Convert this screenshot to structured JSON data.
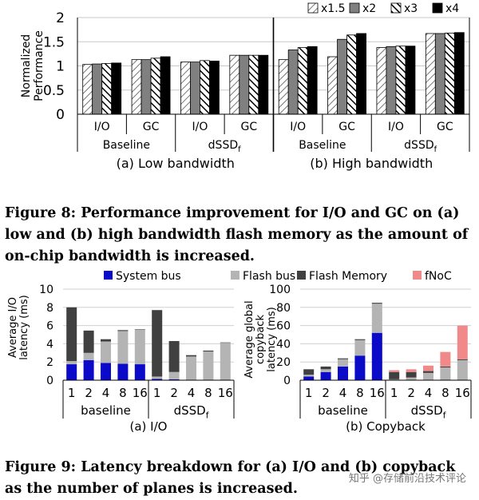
{
  "fig8": {
    "chart_data": {
      "type": "bar",
      "ylabel": "Normalized Performance",
      "ylim": [
        0,
        2
      ],
      "yticks": [
        0,
        0.5,
        1,
        1.5,
        2
      ],
      "yticks_labels": [
        "0",
        "0.5",
        "1",
        "1.5",
        "2"
      ],
      "legend": [
        "x1.5",
        "x2",
        "x3",
        "x4"
      ],
      "legend_position": "top-right",
      "groups": [
        {
          "subtitle": "(a) Low bandwidth",
          "systems": [
            {
              "name": "Baseline",
              "name_sub": "",
              "workloads": [
                {
                  "label": "I/O",
                  "values": [
                    1.03,
                    1.04,
                    1.05,
                    1.06
                  ]
                },
                {
                  "label": "GC",
                  "values": [
                    1.13,
                    1.13,
                    1.16,
                    1.19
                  ]
                }
              ]
            },
            {
              "name": "dSSD",
              "name_sub": "f",
              "workloads": [
                {
                  "label": "I/O",
                  "values": [
                    1.08,
                    1.08,
                    1.11,
                    1.1
                  ]
                },
                {
                  "label": "GC",
                  "values": [
                    1.22,
                    1.22,
                    1.22,
                    1.22
                  ]
                }
              ]
            }
          ]
        },
        {
          "subtitle": "(b) High bandwidth",
          "systems": [
            {
              "name": "Baseline",
              "name_sub": "",
              "workloads": [
                {
                  "label": "I/O",
                  "values": [
                    1.13,
                    1.33,
                    1.38,
                    1.4
                  ]
                },
                {
                  "label": "GC",
                  "values": [
                    1.19,
                    1.55,
                    1.64,
                    1.67
                  ]
                }
              ]
            },
            {
              "name": "dSSD",
              "name_sub": "f",
              "workloads": [
                {
                  "label": "I/O",
                  "values": [
                    1.38,
                    1.4,
                    1.41,
                    1.41
                  ]
                },
                {
                  "label": "GC",
                  "values": [
                    1.67,
                    1.67,
                    1.68,
                    1.69
                  ]
                }
              ]
            }
          ]
        }
      ]
    }
  },
  "caption8": "Figure 8: Performance improvement for I/O and GC on (a) low and (b) high bandwidth flash memory as the amount of on-chip bandwidth is increased.",
  "fig9": {
    "legend": [
      "System bus",
      "Flash bus",
      "Flash Memory",
      "fNoC"
    ],
    "colors": {
      "System bus": "#0a0ac8",
      "Flash bus": "#b4b4b4",
      "Flash Memory": "#404040",
      "fNoC": "#f08a8a"
    },
    "charts": [
      {
        "type": "bar",
        "stacked": true,
        "subtitle": "(a) I/O",
        "ylabel": "Average I/O latency (ms)",
        "ylim": [
          0,
          10
        ],
        "yticks": [
          0,
          2,
          4,
          6,
          8,
          10
        ],
        "yticks_labels": [
          "0",
          "2",
          "4",
          "6",
          "8",
          "10"
        ],
        "groups": [
          {
            "name": "baseline",
            "name_sub": "",
            "categories": [
              "1",
              "2",
              "4",
              "8",
              "16"
            ],
            "stacks": [
              [
                1.75,
                0.35,
                5.9,
                0
              ],
              [
                2.2,
                0.8,
                2.45,
                0
              ],
              [
                1.9,
                2.35,
                0.25,
                0
              ],
              [
                1.8,
                3.6,
                0.1,
                0
              ],
              [
                1.75,
                3.8,
                0.05,
                0
              ]
            ]
          },
          {
            "name": "dSSD",
            "name_sub": "f",
            "categories": [
              "1",
              "2",
              "4",
              "8",
              "16"
            ],
            "stacks": [
              [
                0.15,
                0.25,
                7.3,
                0
              ],
              [
                0.1,
                0.8,
                3.4,
                0
              ],
              [
                0,
                2.6,
                0.15,
                0
              ],
              [
                0,
                3.15,
                0.1,
                0
              ],
              [
                0,
                4.1,
                0.05,
                0
              ]
            ]
          }
        ]
      },
      {
        "type": "bar",
        "stacked": true,
        "subtitle": "(b) Copyback",
        "ylabel": "Average global copyback latency (ms)",
        "ylim": [
          0,
          100
        ],
        "yticks": [
          0,
          20,
          40,
          60,
          80,
          100
        ],
        "yticks_labels": [
          "0",
          "20",
          "40",
          "60",
          "80",
          "100"
        ],
        "groups": [
          {
            "name": "baseline",
            "name_sub": "",
            "categories": [
              "1",
              "2",
              "4",
              "8",
              "16"
            ],
            "stacks": [
              [
                4,
                2,
                6,
                0
              ],
              [
                9,
                3,
                3,
                0
              ],
              [
                15,
                8,
                1,
                0
              ],
              [
                27,
                17,
                1,
                0
              ],
              [
                52,
                32,
                1,
                0
              ]
            ]
          },
          {
            "name": "dSSD",
            "name_sub": "f",
            "categories": [
              "1",
              "2",
              "4",
              "8",
              "16"
            ],
            "stacks": [
              [
                0,
                1,
                8,
                2
              ],
              [
                0,
                3,
                6,
                3
              ],
              [
                0,
                8,
                2,
                6
              ],
              [
                0,
                14,
                1,
                16
              ],
              [
                0,
                22,
                1,
                37
              ]
            ]
          }
        ]
      }
    ]
  },
  "caption9": "Figure 9: Latency breakdown for (a) I/O and (b) copyback as the number of planes is increased.",
  "watermark": "知乎 @存储前沿技术评论"
}
